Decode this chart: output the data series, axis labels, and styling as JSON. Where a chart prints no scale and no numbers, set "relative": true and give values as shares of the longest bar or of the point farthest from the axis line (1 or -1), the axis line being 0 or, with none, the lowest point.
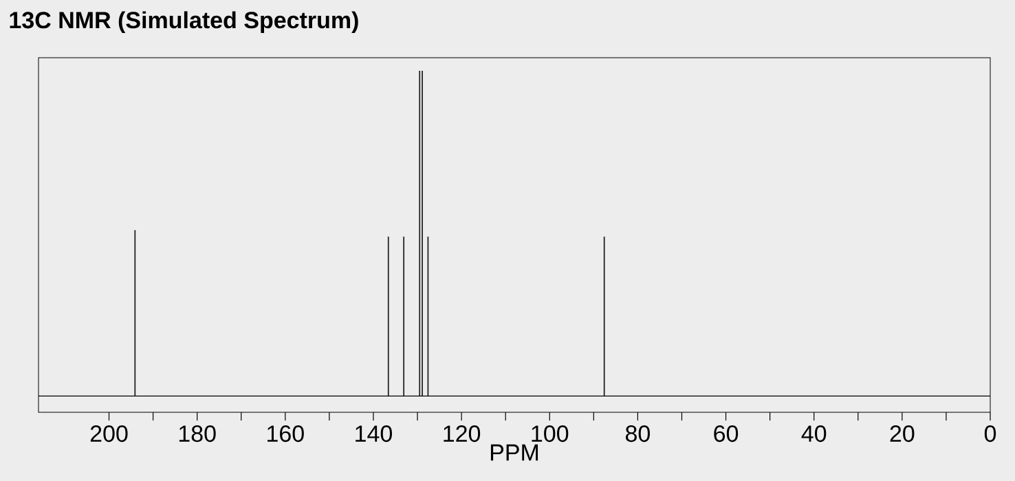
{
  "chart_data": {
    "type": "bar",
    "title": "13C NMR (Simulated Spectrum)",
    "xlabel": "PPM",
    "x": [
      194.1,
      136.6,
      133.1,
      129.5,
      128.9,
      127.6,
      87.6
    ],
    "values": [
      0.51,
      0.49,
      0.49,
      1,
      1,
      0.49,
      0.49
    ],
    "relative": true,
    "color": "#222222",
    "xlim": [
      216,
      0
    ],
    "xticks": [
      200,
      180,
      160,
      140,
      120,
      100,
      80,
      60,
      40,
      20,
      0
    ]
  }
}
